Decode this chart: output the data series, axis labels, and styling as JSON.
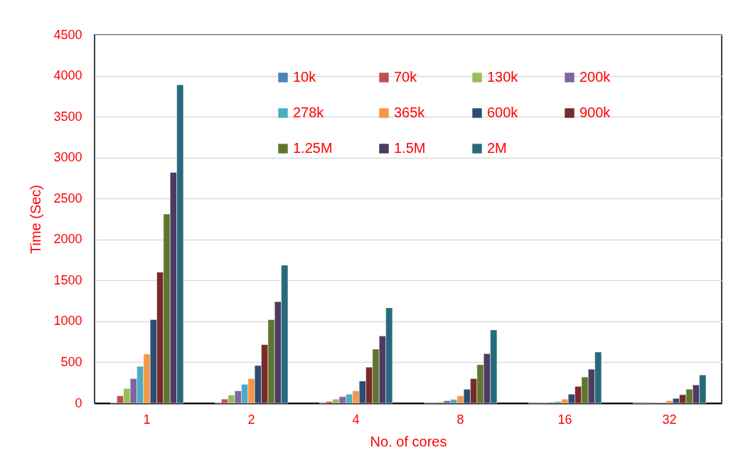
{
  "chart_data": {
    "type": "bar",
    "xlabel": "No. of cores",
    "ylabel": "Time (Sec)",
    "categories": [
      "1",
      "2",
      "4",
      "8",
      "16",
      "32"
    ],
    "ylim": [
      0,
      4500
    ],
    "yticks": [
      0,
      500,
      1000,
      1500,
      2000,
      2500,
      3000,
      3500,
      4000,
      4500
    ],
    "grid": "y",
    "legend": "top right",
    "series": [
      {
        "name": "10k",
        "color": "#4f81bd",
        "values": [
          5,
          3,
          2,
          2,
          1,
          0.5
        ]
      },
      {
        "name": "70k",
        "color": "#c0504d",
        "values": [
          90,
          50,
          20,
          5,
          2,
          1
        ]
      },
      {
        "name": "130k",
        "color": "#9bbb59",
        "values": [
          180,
          100,
          50,
          15,
          5,
          2
        ]
      },
      {
        "name": "200k",
        "color": "#8064a2",
        "values": [
          300,
          150,
          80,
          30,
          10,
          4
        ]
      },
      {
        "name": "278k",
        "color": "#4bacc6",
        "values": [
          450,
          230,
          110,
          45,
          20,
          8
        ]
      },
      {
        "name": "365k",
        "color": "#f79646",
        "values": [
          600,
          300,
          150,
          90,
          50,
          30
        ]
      },
      {
        "name": "600k",
        "color": "#2c4d75",
        "values": [
          1020,
          460,
          270,
          170,
          110,
          58
        ]
      },
      {
        "name": "900k",
        "color": "#772c2a",
        "values": [
          1600,
          715,
          440,
          300,
          205,
          104
        ]
      },
      {
        "name": "1.25M",
        "color": "#5f7530",
        "values": [
          2310,
          1020,
          660,
          470,
          320,
          171
        ]
      },
      {
        "name": "1.5M",
        "color": "#4d3b62",
        "values": [
          2820,
          1240,
          820,
          605,
          415,
          223
        ]
      },
      {
        "name": "2M",
        "color": "#276a7c",
        "values": [
          3890,
          1685,
          1165,
          895,
          625,
          345
        ]
      }
    ]
  }
}
